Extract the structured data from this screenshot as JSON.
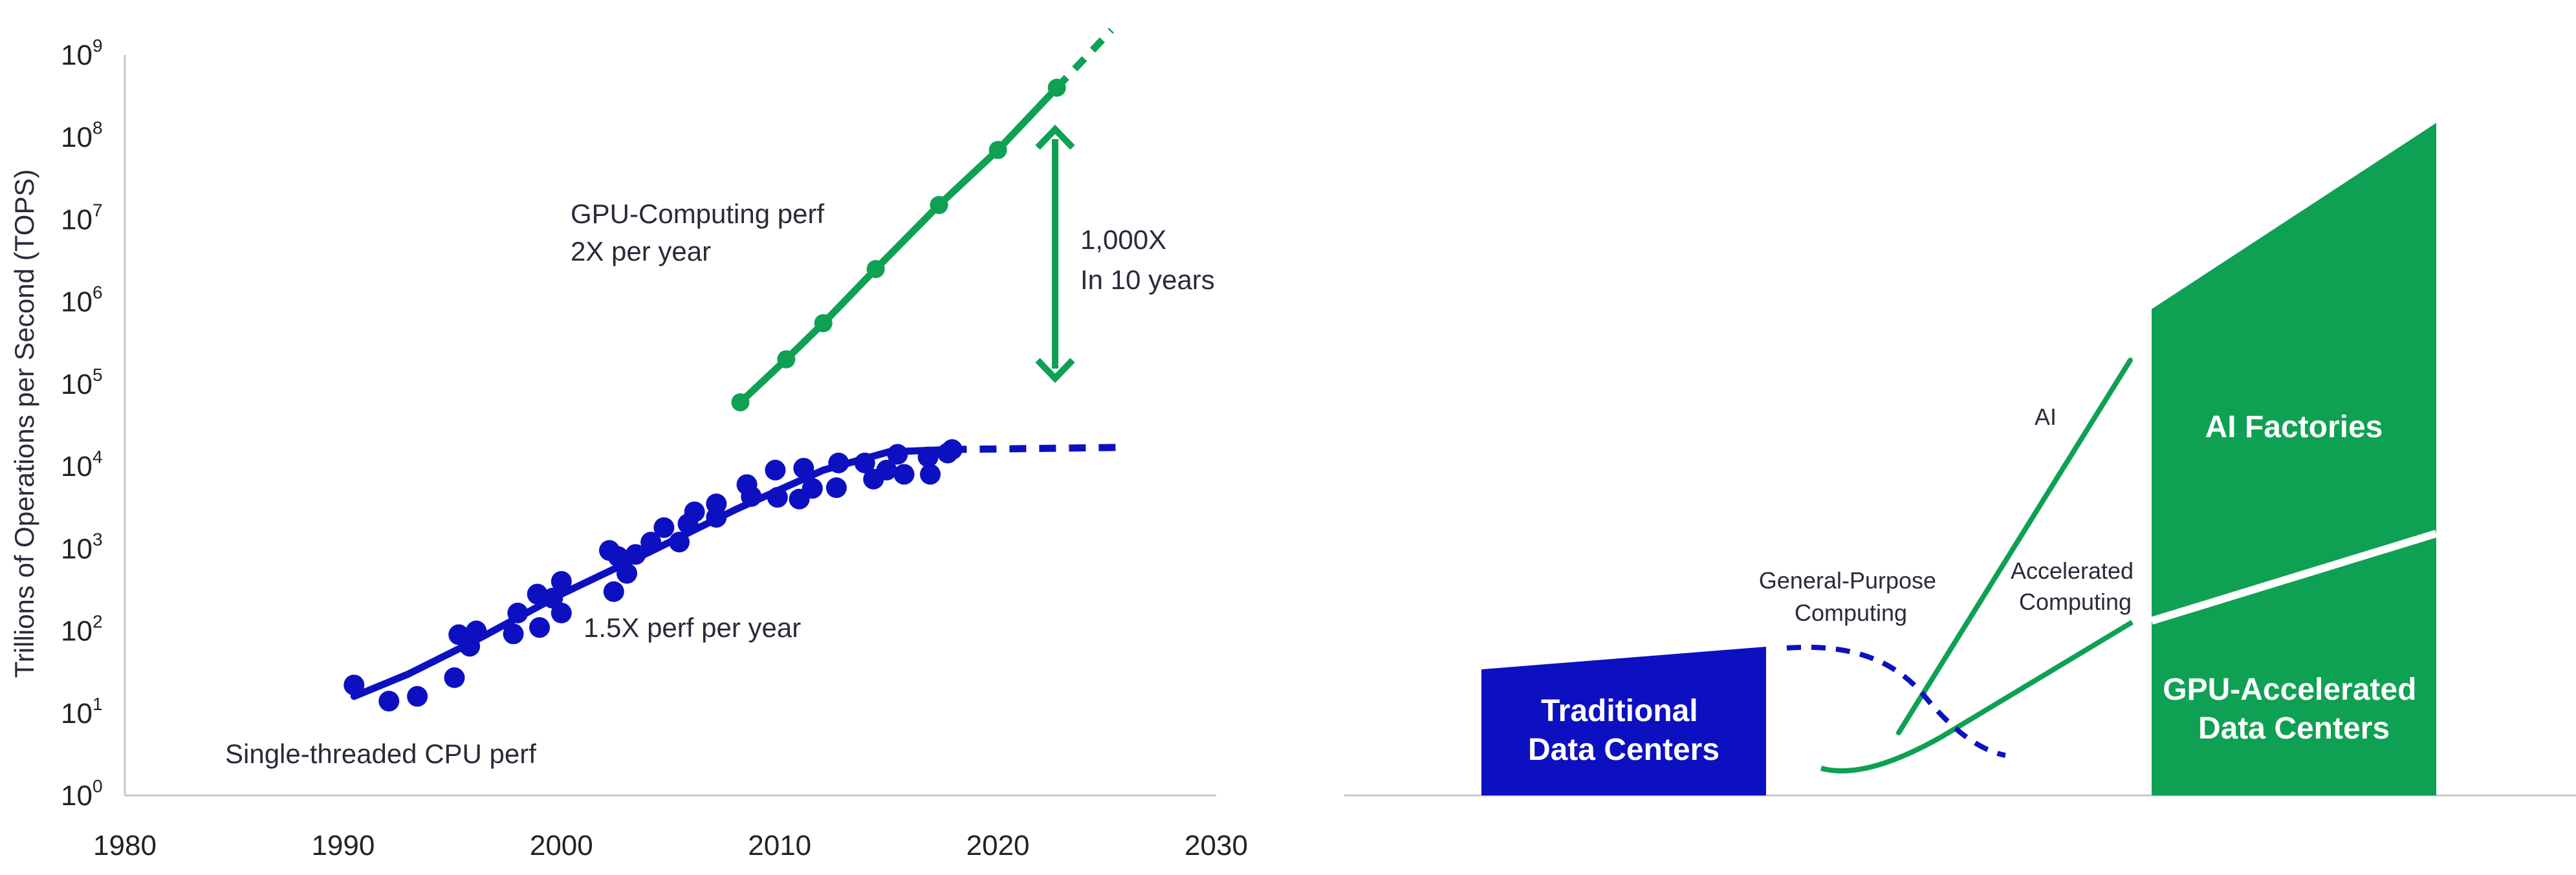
{
  "colors": {
    "gpu": "#0ea153",
    "cpu": "#0d10c0",
    "axis": "#c8c8c8"
  },
  "chart_data": [
    {
      "type": "scatter",
      "ylabel": "Trillions of Operations per Second (TOPS)",
      "y_scale": "log10",
      "ylim": [
        1,
        1000000000
      ],
      "xlim": [
        1980,
        2030
      ],
      "x_ticks": [
        "1980",
        "1990",
        "2000",
        "2010",
        "2020",
        "2030"
      ],
      "y_ticks": [
        {
          "base": "10",
          "exp": "0"
        },
        {
          "base": "10",
          "exp": "1"
        },
        {
          "base": "10",
          "exp": "2"
        },
        {
          "base": "10",
          "exp": "3"
        },
        {
          "base": "10",
          "exp": "4"
        },
        {
          "base": "10",
          "exp": "5"
        },
        {
          "base": "10",
          "exp": "6"
        },
        {
          "base": "10",
          "exp": "7"
        },
        {
          "base": "10",
          "exp": "8"
        },
        {
          "base": "10",
          "exp": "9"
        }
      ],
      "series": [
        {
          "name": "GPU-Computing perf",
          "points": [
            [
              2008.2,
              60000
            ],
            [
              2010.3,
              200000
            ],
            [
              2012.0,
              550000
            ],
            [
              2014.4,
              2500000
            ],
            [
              2017.3,
              15000000
            ],
            [
              2020.0,
              70000000
            ],
            [
              2022.7,
              400000000
            ]
          ],
          "projection": [
            [
              2022.7,
              400000000
            ],
            [
              2025.2,
              2000000000
            ]
          ]
        },
        {
          "name": "Single-threaded CPU perf",
          "points": [
            [
              1990.5,
              22
            ],
            [
              1992.1,
              14
            ],
            [
              1993.4,
              16
            ],
            [
              1995.1,
              27
            ],
            [
              1995.3,
              90
            ],
            [
              1995.8,
              65
            ],
            [
              1996.1,
              100
            ],
            [
              1997.8,
              92
            ],
            [
              1998.0,
              165
            ],
            [
              1998.9,
              280
            ],
            [
              1999.0,
              110
            ],
            [
              1999.6,
              250
            ],
            [
              2000.0,
              165
            ],
            [
              2000.0,
              400
            ],
            [
              2002.2,
              950
            ],
            [
              2002.4,
              300
            ],
            [
              2002.6,
              800
            ],
            [
              2003.0,
              500
            ],
            [
              2003.4,
              850
            ],
            [
              2004.1,
              1200
            ],
            [
              2004.7,
              1800
            ],
            [
              2005.4,
              1200
            ],
            [
              2005.8,
              2000
            ],
            [
              2006.1,
              2800
            ],
            [
              2007.1,
              3500
            ],
            [
              2007.1,
              2400
            ],
            [
              2008.5,
              6000
            ],
            [
              2008.7,
              4300
            ],
            [
              2009.8,
              9000
            ],
            [
              2009.9,
              4200
            ],
            [
              2010.9,
              4000
            ],
            [
              2011.1,
              9500
            ],
            [
              2011.5,
              5400
            ],
            [
              2012.6,
              5500
            ],
            [
              2012.7,
              11000
            ],
            [
              2013.9,
              11000
            ],
            [
              2014.3,
              7000
            ],
            [
              2014.9,
              9000
            ],
            [
              2015.4,
              14000
            ],
            [
              2015.7,
              8000
            ],
            [
              2016.8,
              13000
            ],
            [
              2016.9,
              8000
            ],
            [
              2017.7,
              14500
            ],
            [
              2017.9,
              16000
            ]
          ],
          "trend": [
            [
              1990.5,
              16
            ],
            [
              1993,
              30
            ],
            [
              1996,
              75
            ],
            [
              2000,
              280
            ],
            [
              2004,
              900
            ],
            [
              2008,
              3000
            ],
            [
              2012,
              9000
            ],
            [
              2015,
              15000
            ],
            [
              2017.8,
              16000
            ]
          ],
          "projection": [
            [
              2017.8,
              16000
            ],
            [
              2022,
              16500
            ],
            [
              2025.5,
              17000
            ]
          ]
        }
      ],
      "annotations": [
        {
          "id": "gpu-rate",
          "lines": [
            "GPU-Computing perf",
            "2X per year"
          ]
        },
        {
          "id": "gap",
          "lines": [
            "1,000X",
            "In 10 years"
          ]
        },
        {
          "id": "cpu-rate",
          "lines": [
            "1.5X perf per year"
          ]
        },
        {
          "id": "cpu-name",
          "lines": [
            "Single-threaded CPU perf"
          ]
        }
      ]
    },
    {
      "type": "diagram",
      "blocks": [
        {
          "id": "traditional",
          "lines": [
            "Traditional",
            "Data Centers"
          ]
        },
        {
          "id": "ai-factories",
          "lines": [
            "AI Factories"
          ]
        },
        {
          "id": "gpu-accelerated",
          "lines": [
            "GPU-Accelerated",
            "Data Centers"
          ]
        }
      ],
      "curve_labels": [
        {
          "id": "ai",
          "lines": [
            "AI"
          ]
        },
        {
          "id": "general",
          "lines": [
            "General-Purpose",
            "Computing"
          ]
        },
        {
          "id": "accelerated",
          "lines": [
            "Accelerated",
            "Computing"
          ]
        }
      ]
    }
  ]
}
